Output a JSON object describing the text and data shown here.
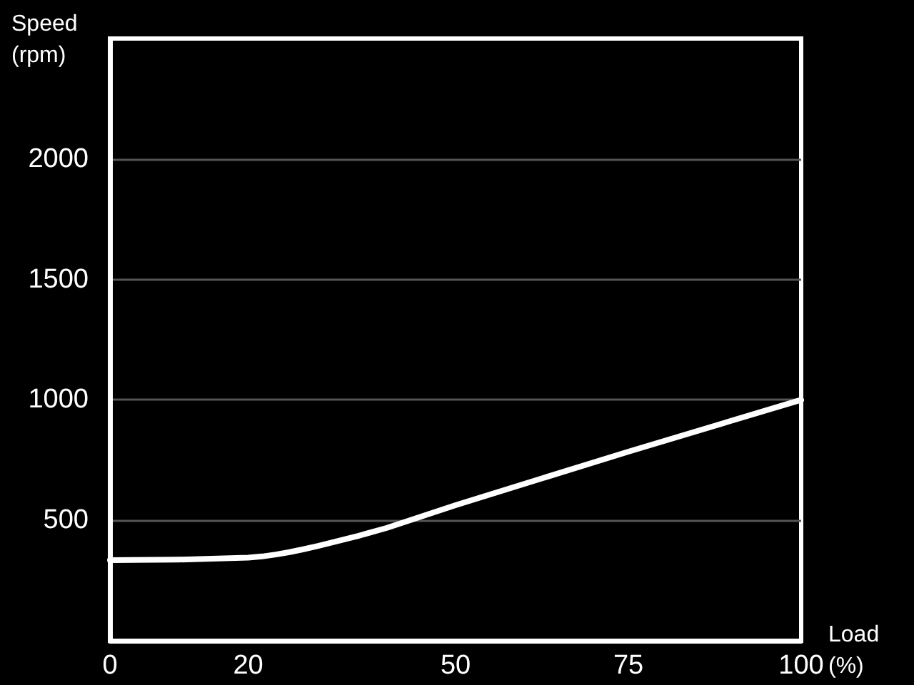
{
  "chart_data": {
    "type": "line",
    "xlabel": "Load\n(%)",
    "ylabel": "Speed\n(rpm)",
    "x": [
      0,
      10,
      20,
      22,
      24,
      26,
      28,
      30,
      33,
      36,
      40,
      50,
      75,
      100
    ],
    "series": [
      {
        "color": "#ffffff",
        "values": [
          335,
          337,
          345,
          350,
          358,
          368,
          380,
          393,
          414,
          436,
          468,
          563,
          785,
          1000
        ]
      }
    ],
    "xlim": [
      0,
      100
    ],
    "xticks": [
      0,
      20,
      50,
      75,
      100
    ],
    "ylim": [
      0,
      2500
    ],
    "yticks": [
      500,
      1000,
      1500,
      2000
    ],
    "grid": "y",
    "marker": "none",
    "line_style": "solid"
  }
}
